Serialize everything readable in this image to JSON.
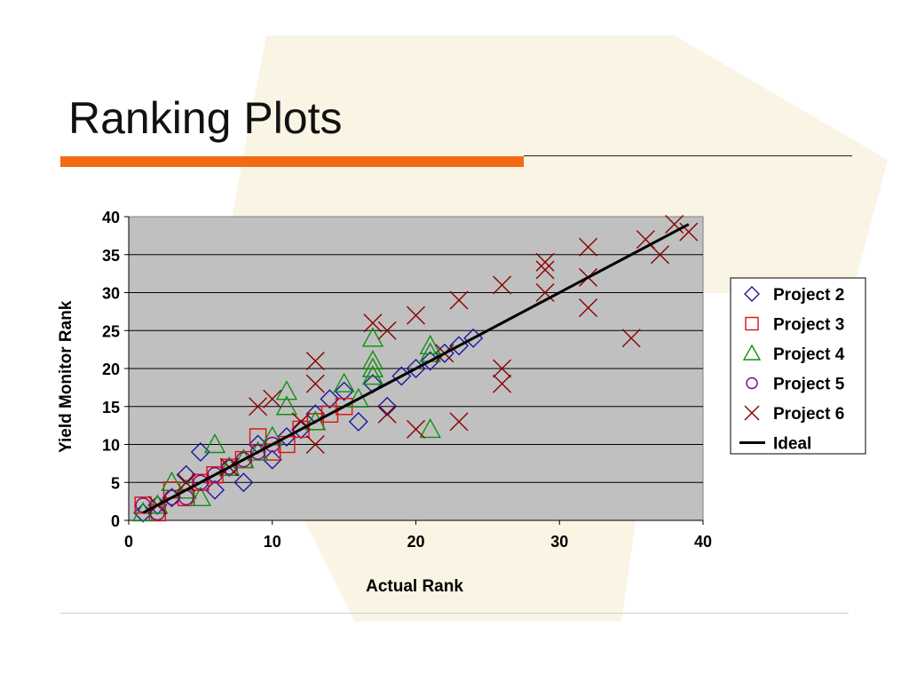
{
  "slide": {
    "title": "Ranking Plots"
  },
  "colors": {
    "accent": "#f26a11",
    "plot_bg": "#c0c0c0",
    "project2": "#1a1aa0",
    "project3": "#e01010",
    "project4": "#109010",
    "project5": "#800080",
    "project6": "#8b0000",
    "ideal": "#000000"
  },
  "chart_data": {
    "type": "scatter",
    "xlabel": "Actual Rank",
    "ylabel": "Yield Monitor Rank",
    "xlim": [
      0,
      40
    ],
    "ylim": [
      0,
      40
    ],
    "xticks": [
      0,
      10,
      20,
      30,
      40
    ],
    "yticks": [
      0,
      5,
      10,
      15,
      20,
      25,
      30,
      35,
      40
    ],
    "grid": "horizontal",
    "legend_position": "right",
    "series": [
      {
        "name": "Project 2",
        "marker": "diamond",
        "points": [
          [
            1,
            1
          ],
          [
            2,
            2
          ],
          [
            3,
            3
          ],
          [
            4,
            6
          ],
          [
            5,
            9
          ],
          [
            6,
            4
          ],
          [
            7,
            7
          ],
          [
            8,
            5
          ],
          [
            9,
            10
          ],
          [
            10,
            8
          ],
          [
            11,
            11
          ],
          [
            12,
            12
          ],
          [
            13,
            14
          ],
          [
            14,
            16
          ],
          [
            15,
            17
          ],
          [
            16,
            13
          ],
          [
            17,
            18
          ],
          [
            18,
            15
          ],
          [
            19,
            19
          ],
          [
            20,
            20
          ],
          [
            21,
            21
          ],
          [
            22,
            22
          ],
          [
            23,
            23
          ],
          [
            24,
            24
          ]
        ]
      },
      {
        "name": "Project 3",
        "marker": "square",
        "points": [
          [
            1,
            2
          ],
          [
            2,
            1
          ],
          [
            3,
            4
          ],
          [
            4,
            3
          ],
          [
            5,
            5
          ],
          [
            6,
            6
          ],
          [
            7,
            7
          ],
          [
            8,
            8
          ],
          [
            9,
            11
          ],
          [
            10,
            9
          ],
          [
            11,
            10
          ],
          [
            12,
            12
          ],
          [
            13,
            13
          ],
          [
            14,
            14
          ],
          [
            15,
            15
          ]
        ]
      },
      {
        "name": "Project 4",
        "marker": "triangle",
        "points": [
          [
            1,
            1
          ],
          [
            2,
            2
          ],
          [
            3,
            5
          ],
          [
            4,
            4
          ],
          [
            5,
            3
          ],
          [
            6,
            10
          ],
          [
            7,
            7
          ],
          [
            8,
            8
          ],
          [
            9,
            9
          ],
          [
            10,
            11
          ],
          [
            11,
            17
          ],
          [
            11,
            15
          ],
          [
            13,
            13
          ],
          [
            15,
            18
          ],
          [
            16,
            16
          ],
          [
            17,
            24
          ],
          [
            17,
            21
          ],
          [
            17,
            20
          ],
          [
            17,
            19
          ],
          [
            21,
            23
          ],
          [
            21,
            22
          ],
          [
            21,
            12
          ]
        ]
      },
      {
        "name": "Project 5",
        "marker": "circle",
        "points": [
          [
            1,
            2
          ],
          [
            2,
            1
          ],
          [
            3,
            3
          ],
          [
            4,
            3
          ],
          [
            5,
            5
          ],
          [
            6,
            6
          ],
          [
            7,
            7
          ],
          [
            8,
            8
          ],
          [
            9,
            9
          ],
          [
            10,
            10
          ]
        ]
      },
      {
        "name": "Project 6",
        "marker": "x",
        "points": [
          [
            2,
            2
          ],
          [
            4,
            5
          ],
          [
            7,
            7
          ],
          [
            9,
            15
          ],
          [
            10,
            16
          ],
          [
            12,
            13
          ],
          [
            13,
            21
          ],
          [
            13,
            18
          ],
          [
            13,
            10
          ],
          [
            17,
            26
          ],
          [
            18,
            25
          ],
          [
            18,
            14
          ],
          [
            20,
            27
          ],
          [
            20,
            12
          ],
          [
            22,
            22
          ],
          [
            23,
            29
          ],
          [
            23,
            13
          ],
          [
            26,
            31
          ],
          [
            26,
            20
          ],
          [
            26,
            18
          ],
          [
            29,
            34
          ],
          [
            29,
            33
          ],
          [
            29,
            30
          ],
          [
            32,
            36
          ],
          [
            32,
            32
          ],
          [
            32,
            28
          ],
          [
            35,
            24
          ],
          [
            36,
            37
          ],
          [
            37,
            35
          ],
          [
            38,
            39
          ],
          [
            39,
            38
          ]
        ]
      },
      {
        "name": "Ideal",
        "marker": "line",
        "points": [
          [
            1,
            1
          ],
          [
            5,
            5
          ],
          [
            10,
            10
          ],
          [
            15,
            15
          ],
          [
            20,
            20
          ],
          [
            25,
            25
          ],
          [
            30,
            30
          ],
          [
            35,
            35
          ],
          [
            39,
            39
          ]
        ]
      }
    ]
  }
}
